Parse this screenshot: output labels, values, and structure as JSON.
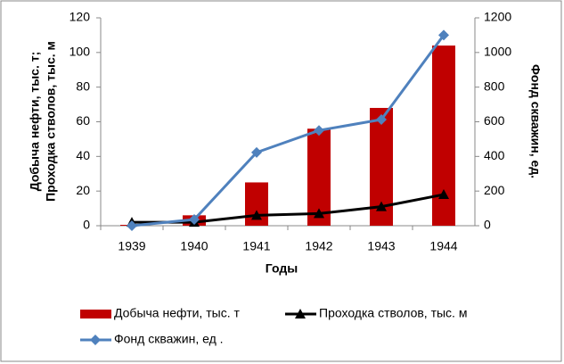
{
  "chart_data": {
    "type": "combo",
    "categories": [
      "1939",
      "1940",
      "1941",
      "1942",
      "1943",
      "1944"
    ],
    "x_label": "Годы",
    "y_label": [
      "Добыча нефти, тыс. т;",
      "Проходка стволов, тыс. м"
    ],
    "y2_label": "Фонд скважин, ед.",
    "ylim": [
      0,
      120
    ],
    "yticks": [
      0,
      20,
      40,
      60,
      80,
      100,
      120
    ],
    "y2lim": [
      0,
      1200
    ],
    "y2ticks": [
      0,
      200,
      400,
      600,
      800,
      1000,
      1200
    ],
    "grid": false,
    "legend": "bottom",
    "series": [
      {
        "name": "Добыча нефти, тыс. т",
        "type": "bar",
        "color": "#c00000",
        "values": [
          0.5,
          6,
          25,
          56,
          68,
          104
        ]
      },
      {
        "name": "Проходка стволов, тыс. м",
        "type": "line",
        "marker": "triangle",
        "color": "#000000",
        "values": [
          2,
          2,
          6,
          7,
          11,
          18
        ]
      },
      {
        "name": "Фонд скважин, ед .",
        "type": "line",
        "marker": "diamond",
        "axis": "y2",
        "color": "#4f81bd",
        "values": [
          0,
          36,
          423,
          550,
          613,
          1100
        ]
      }
    ]
  }
}
